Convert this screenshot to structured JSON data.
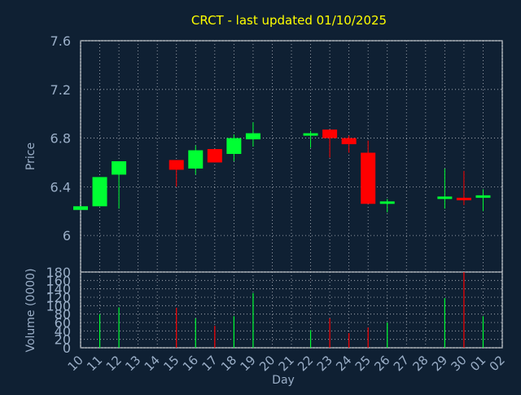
{
  "colors": {
    "background": "#0f2033",
    "plot_border": "#ffffff",
    "grid": "#b8bcc4",
    "title": "#ffff00",
    "axis_text": "#9aaec7",
    "up": "#00ff33",
    "down": "#ff0000",
    "wick": "#999999"
  },
  "chart_data": [
    {
      "type": "candlestick",
      "title": "CRCT - last updated 01/10/2025",
      "ylabel": "Price",
      "ylim": [
        5.7,
        7.6
      ],
      "yticks": [
        "6",
        "6.4",
        "6.8",
        "7.2",
        "7.6"
      ],
      "ytick_values": [
        6.0,
        6.4,
        6.8,
        7.2,
        7.6
      ],
      "categories": [
        "10",
        "11",
        "12",
        "13",
        "14",
        "15",
        "16",
        "17",
        "18",
        "19",
        "20",
        "21",
        "22",
        "23",
        "24",
        "25",
        "26",
        "27",
        "28",
        "29",
        "30",
        "01",
        "02"
      ],
      "grid": true,
      "candles": [
        {
          "x": "10",
          "open": 6.21,
          "close": 6.24,
          "high": 6.24,
          "low": 6.21
        },
        {
          "x": "11",
          "open": 6.24,
          "close": 6.48,
          "high": 6.48,
          "low": 6.24
        },
        {
          "x": "12",
          "open": 6.5,
          "close": 6.61,
          "high": 6.61,
          "low": 6.22
        },
        {
          "x": "15",
          "open": 6.62,
          "close": 6.54,
          "high": 6.62,
          "low": 6.4
        },
        {
          "x": "16",
          "open": 6.55,
          "close": 6.7,
          "high": 6.74,
          "low": 6.5
        },
        {
          "x": "17",
          "open": 6.71,
          "close": 6.6,
          "high": 6.71,
          "low": 6.6
        },
        {
          "x": "18",
          "open": 6.67,
          "close": 6.8,
          "high": 6.83,
          "low": 6.61
        },
        {
          "x": "19",
          "open": 6.79,
          "close": 6.84,
          "high": 6.93,
          "low": 6.73
        },
        {
          "x": "22",
          "open": 6.83,
          "close": 6.84,
          "high": 6.86,
          "low": 6.72
        },
        {
          "x": "23",
          "open": 6.87,
          "close": 6.8,
          "high": 6.87,
          "low": 6.64
        },
        {
          "x": "24",
          "open": 6.8,
          "close": 6.75,
          "high": 6.82,
          "low": 6.68
        },
        {
          "x": "25",
          "open": 6.68,
          "close": 6.26,
          "high": 6.78,
          "low": 6.26
        },
        {
          "x": "26",
          "open": 6.27,
          "close": 6.28,
          "high": 6.3,
          "low": 6.19
        },
        {
          "x": "29",
          "open": 6.3,
          "close": 6.32,
          "high": 6.55,
          "low": 6.22
        },
        {
          "x": "30",
          "open": 6.31,
          "close": 6.29,
          "high": 6.53,
          "low": 6.25
        },
        {
          "x": "01",
          "open": 6.31,
          "close": 6.33,
          "high": 6.38,
          "low": 6.2
        }
      ]
    },
    {
      "type": "bar",
      "ylabel": "Volume (0000)",
      "xlabel": "Day",
      "ylim": [
        0,
        180
      ],
      "yticks": [
        "0",
        "20",
        "40",
        "60",
        "80",
        "100",
        "120",
        "140",
        "160",
        "180"
      ],
      "ytick_values": [
        0,
        20,
        40,
        60,
        80,
        100,
        120,
        140,
        160,
        180
      ],
      "categories": [
        "10",
        "11",
        "12",
        "13",
        "14",
        "15",
        "16",
        "17",
        "18",
        "19",
        "20",
        "21",
        "22",
        "23",
        "24",
        "25",
        "26",
        "27",
        "28",
        "29",
        "30",
        "01",
        "02"
      ],
      "grid": true,
      "bars": [
        {
          "x": "11",
          "value": 80,
          "direction": "up"
        },
        {
          "x": "12",
          "value": 96,
          "direction": "up"
        },
        {
          "x": "15",
          "value": 95,
          "direction": "down"
        },
        {
          "x": "16",
          "value": 70,
          "direction": "up"
        },
        {
          "x": "17",
          "value": 52,
          "direction": "down"
        },
        {
          "x": "18",
          "value": 75,
          "direction": "up"
        },
        {
          "x": "19",
          "value": 130,
          "direction": "up"
        },
        {
          "x": "22",
          "value": 42,
          "direction": "up"
        },
        {
          "x": "23",
          "value": 70,
          "direction": "down"
        },
        {
          "x": "24",
          "value": 35,
          "direction": "down"
        },
        {
          "x": "25",
          "value": 48,
          "direction": "down"
        },
        {
          "x": "26",
          "value": 60,
          "direction": "up"
        },
        {
          "x": "29",
          "value": 118,
          "direction": "up"
        },
        {
          "x": "30",
          "value": 180,
          "direction": "down"
        },
        {
          "x": "01",
          "value": 75,
          "direction": "up"
        }
      ]
    }
  ]
}
